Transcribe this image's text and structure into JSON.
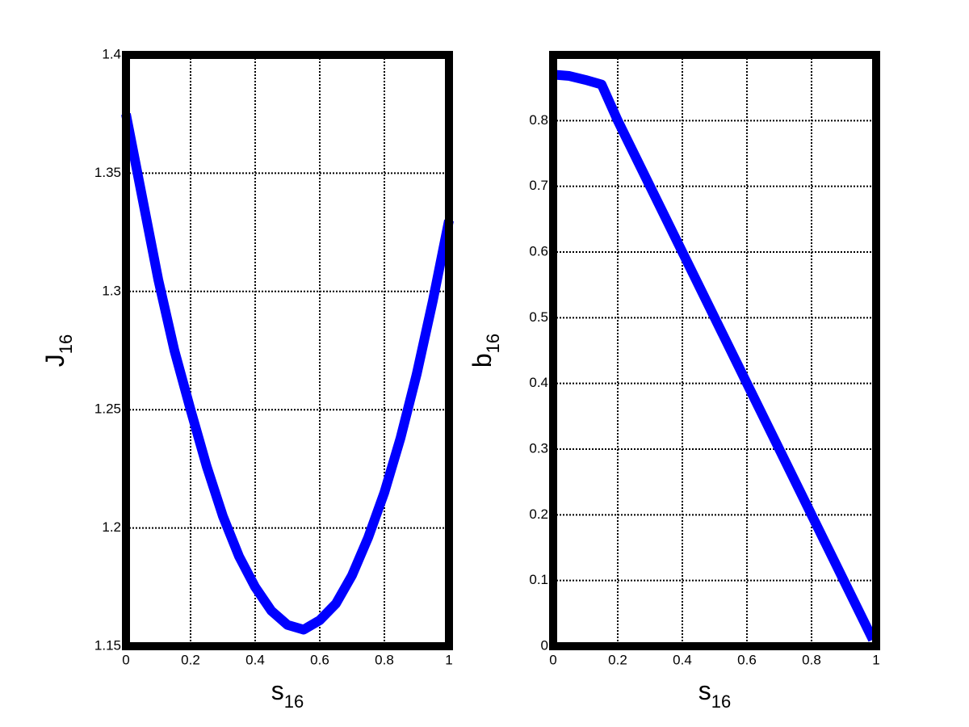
{
  "chart_data": [
    {
      "type": "line",
      "xlabel": {
        "text": "s",
        "subscript": "16"
      },
      "ylabel": {
        "text": "J",
        "subscript": "16"
      },
      "x": [
        0,
        0.05,
        0.1,
        0.15,
        0.2,
        0.25,
        0.3,
        0.35,
        0.4,
        0.45,
        0.5,
        0.55,
        0.6,
        0.65,
        0.7,
        0.75,
        0.8,
        0.85,
        0.9,
        0.95,
        1
      ],
      "values": [
        1.375,
        1.34,
        1.305,
        1.275,
        1.25,
        1.226,
        1.205,
        1.188,
        1.175,
        1.165,
        1.159,
        1.157,
        1.161,
        1.168,
        1.18,
        1.196,
        1.215,
        1.238,
        1.265,
        1.296,
        1.33
      ],
      "color": "#0000ff",
      "xlim": [
        0,
        1
      ],
      "xticks": [
        0,
        0.2,
        0.4,
        0.6,
        0.8,
        1
      ],
      "ylim": [
        1.15,
        1.4
      ],
      "yticks": [
        1.15,
        1.2,
        1.25,
        1.3,
        1.35,
        1.4
      ],
      "grid": true
    },
    {
      "type": "line",
      "xlabel": {
        "text": "s",
        "subscript": "16"
      },
      "ylabel": {
        "text": "b",
        "subscript": "16"
      },
      "x": [
        0,
        0.05,
        0.1,
        0.15,
        0.2,
        0.4,
        0.6,
        0.8,
        0.99
      ],
      "values": [
        0.87,
        0.868,
        0.862,
        0.855,
        0.8,
        0.6,
        0.4,
        0.2,
        0.01
      ],
      "color": "#0000ff",
      "xlim": [
        0,
        1
      ],
      "xticks": [
        0,
        0.2,
        0.4,
        0.6,
        0.8,
        1
      ],
      "ylim": [
        0,
        0.9
      ],
      "yticks": [
        0,
        0.1,
        0.2,
        0.3,
        0.4,
        0.5,
        0.6,
        0.7,
        0.8
      ],
      "grid": true
    }
  ]
}
